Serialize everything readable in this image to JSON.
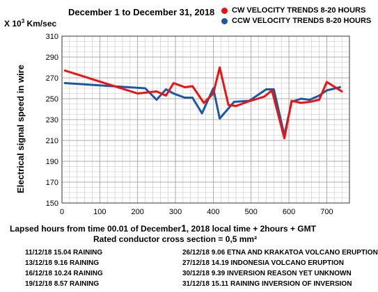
{
  "chart_data": {
    "type": "line",
    "title": "December 1 to December 31, 2018",
    "y_unit_prefix": "X 10",
    "y_unit_exponent": "3",
    "y_unit_suffix": " Km/sec",
    "ylabel": "Electrical signal speed in wire",
    "xlabel_part1": "Lapsed hours from time 00.01 of December",
    "xlabel_day": "1",
    "xlabel_part2": ", 2018  local time  + 2hours + GMT",
    "subnote": "Rated conductor cross section = 0,5 mm²",
    "xlim": [
      0,
      760
    ],
    "ylim": [
      150,
      310
    ],
    "x_ticks": [
      0,
      100,
      200,
      300,
      400,
      500,
      600,
      700
    ],
    "y_ticks": [
      150,
      170,
      190,
      210,
      230,
      250,
      270,
      290,
      310
    ],
    "grid": true,
    "legend_position": "top-right",
    "series": [
      {
        "name": "CW VELOCITY TRENDS 8-20 HOURS",
        "color": "#ee1111",
        "x": [
          8,
          200,
          250,
          275,
          295,
          325,
          345,
          375,
          400,
          417,
          440,
          460,
          490,
          535,
          555,
          588,
          607,
          632,
          655,
          680,
          700,
          740
        ],
        "y": [
          277,
          255,
          257,
          253,
          265,
          261,
          262,
          246,
          255,
          280,
          244,
          243,
          247,
          252,
          258,
          212,
          248,
          246,
          247,
          249,
          266,
          257
        ]
      },
      {
        "name": "CCW VELOCITY TRENDS 8-20 HOURS",
        "color": "#1a57a8",
        "x": [
          8,
          220,
          250,
          275,
          295,
          325,
          345,
          370,
          400,
          417,
          455,
          495,
          540,
          560,
          588,
          607,
          632,
          655,
          680,
          700,
          735
        ],
        "y": [
          265,
          260,
          249,
          259,
          255,
          251,
          251,
          236,
          260,
          231,
          247,
          248,
          259,
          259,
          215,
          247,
          250,
          249,
          253,
          258,
          261
        ]
      }
    ]
  },
  "notes_left": [
    "11/12/18 15.04 RAINING",
    "13/12/18  9.16 RAINING",
    "16/12/18 10.24 RAINING",
    "19/12/18  8.57 RAINING"
  ],
  "notes_right": [
    "26/12/18  9.06 ETNA AND KRAKATOA VOLCANO ERUPTION",
    "27/12/18 14.19 INDONESIA VOLCANO ERUPTION",
    "30/12/18  9.39 INVERSION REASON YET UNKNOWN",
    "31/12/18 15.11 RAINING INVERSION OF INVERSION"
  ]
}
